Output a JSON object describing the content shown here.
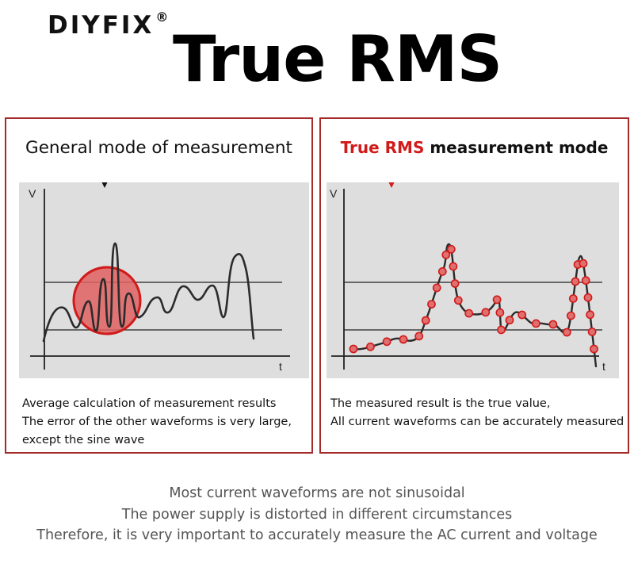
{
  "brand": {
    "name": "DIYFIX",
    "mark": "®"
  },
  "headline": "True RMS",
  "panels": {
    "general": {
      "title": "General mode of measurement",
      "y_axis": "V",
      "x_axis": "t",
      "caption": [
        "Average calculation of measurement results",
        "The error of the other waveforms is very large,",
        "except the sine wave"
      ]
    },
    "true_rms": {
      "title_accent": "True RMS",
      "title_rest": " measurement mode",
      "y_axis": "V",
      "x_axis": "t",
      "caption": [
        "The measured result is the true value,",
        "All current waveforms can be accurately measured"
      ]
    }
  },
  "footer": [
    "Most current waveforms are not sinusoidal",
    "The power supply is distorted in different circumstances",
    "Therefore, it is very important to accurately measure the AC current and voltage"
  ],
  "colors": {
    "frame": "#a52a2a",
    "accent": "#d11a1a",
    "highlight_fill": "#e06060",
    "graph_bg": "#dedede"
  }
}
